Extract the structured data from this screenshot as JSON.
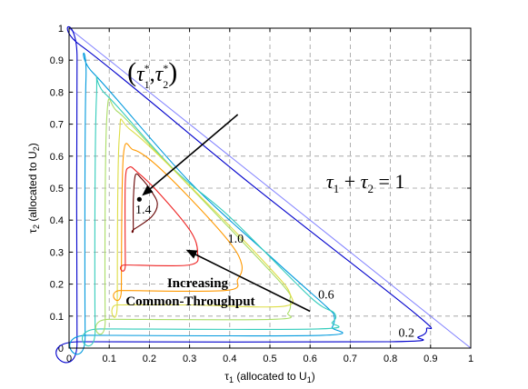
{
  "chart_data": {
    "type": "line",
    "title": "",
    "xlabel": {
      "main": "τ",
      "sub": "1",
      "rest": " (allocated to U",
      "rest_sub": "1",
      "end": ")"
    },
    "ylabel": {
      "main": "τ",
      "sub": "2",
      "rest": " (allocated to U",
      "rest_sub": "2",
      "end": ")"
    },
    "xlim": [
      0,
      1
    ],
    "ylim": [
      0,
      1
    ],
    "xticks": [
      "0",
      "0.1",
      "0.2",
      "0.3",
      "0.4",
      "0.5",
      "0.6",
      "0.7",
      "0.8",
      "0.9",
      "1"
    ],
    "yticks": [
      "0",
      "0.1",
      "0.2",
      "0.3",
      "0.4",
      "0.5",
      "0.6",
      "0.7",
      "0.8",
      "0.9",
      "1"
    ],
    "grid": true,
    "constraint_line": {
      "from": [
        0,
        1
      ],
      "to": [
        1,
        0
      ],
      "color": "#8080ff"
    },
    "contours": [
      {
        "color": "#0000cc",
        "points": [
          [
            0.027,
            0.02
          ],
          [
            0.8,
            0.02
          ],
          [
            0.87,
            0.035
          ],
          [
            0.89,
            0.06
          ],
          [
            0.86,
            0.11
          ],
          [
            0.45,
            0.515
          ],
          [
            0.03,
            0.945
          ],
          [
            0.02,
            0.9
          ],
          [
            0.02,
            0.02
          ]
        ]
      },
      {
        "color": "#0099dd",
        "points": [
          [
            0.047,
            0.04
          ],
          [
            0.63,
            0.04
          ],
          [
            0.655,
            0.065
          ],
          [
            0.66,
            0.1
          ],
          [
            0.64,
            0.13
          ],
          [
            0.52,
            0.265
          ],
          [
            0.3,
            0.52
          ],
          [
            0.06,
            0.86
          ],
          [
            0.042,
            0.84
          ],
          [
            0.04,
            0.04
          ]
        ]
      },
      {
        "color": "#33ccbb",
        "points": [
          [
            0.077,
            0.06
          ],
          [
            0.62,
            0.06
          ],
          [
            0.655,
            0.08
          ],
          [
            0.66,
            0.11
          ],
          [
            0.6,
            0.16
          ],
          [
            0.4,
            0.41
          ],
          [
            0.26,
            0.56
          ],
          [
            0.09,
            0.795
          ],
          [
            0.068,
            0.78
          ],
          [
            0.065,
            0.06
          ]
        ]
      },
      {
        "color": "#aadd66",
        "points": [
          [
            0.1,
            0.09
          ],
          [
            0.51,
            0.09
          ],
          [
            0.545,
            0.11
          ],
          [
            0.55,
            0.15
          ],
          [
            0.53,
            0.2
          ],
          [
            0.35,
            0.44
          ],
          [
            0.22,
            0.61
          ],
          [
            0.12,
            0.74
          ],
          [
            0.094,
            0.72
          ],
          [
            0.09,
            0.09
          ]
        ]
      },
      {
        "color": "#dddd44",
        "points": [
          [
            0.12,
            0.135
          ],
          [
            0.3,
            0.135
          ],
          [
            0.53,
            0.13
          ],
          [
            0.55,
            0.17
          ],
          [
            0.5,
            0.25
          ],
          [
            0.33,
            0.47
          ],
          [
            0.155,
            0.68
          ],
          [
            0.125,
            0.66
          ],
          [
            0.12,
            0.135
          ]
        ]
      },
      {
        "color": "#ff9900",
        "points": [
          [
            0.13,
            0.18
          ],
          [
            0.39,
            0.18
          ],
          [
            0.42,
            0.215
          ],
          [
            0.43,
            0.26
          ],
          [
            0.4,
            0.33
          ],
          [
            0.3,
            0.47
          ],
          [
            0.21,
            0.58
          ],
          [
            0.16,
            0.62
          ],
          [
            0.135,
            0.6
          ],
          [
            0.13,
            0.18
          ]
        ]
      },
      {
        "color": "#ee2222",
        "points": [
          [
            0.14,
            0.26
          ],
          [
            0.3,
            0.26
          ],
          [
            0.32,
            0.3
          ],
          [
            0.3,
            0.37
          ],
          [
            0.22,
            0.49
          ],
          [
            0.17,
            0.55
          ],
          [
            0.15,
            0.565
          ],
          [
            0.14,
            0.52
          ],
          [
            0.14,
            0.26
          ]
        ]
      },
      {
        "color": "#660000",
        "points": [
          [
            0.16,
            0.37
          ],
          [
            0.205,
            0.41
          ],
          [
            0.22,
            0.45
          ],
          [
            0.205,
            0.49
          ],
          [
            0.18,
            0.53
          ],
          [
            0.165,
            0.54
          ],
          [
            0.16,
            0.46
          ],
          [
            0.16,
            0.37
          ]
        ]
      }
    ],
    "optimum_point": [
      0.175,
      0.465
    ],
    "contour_labels": [
      {
        "text": "1.4",
        "x": 0.185,
        "y": 0.42
      },
      {
        "text": "1.0",
        "x": 0.415,
        "y": 0.33
      },
      {
        "text": "0.6",
        "x": 0.64,
        "y": 0.155
      },
      {
        "text": "0.2",
        "x": 0.84,
        "y": 0.035
      }
    ],
    "annotations": {
      "point_label": {
        "open": "(",
        "tau": "τ",
        "sub1": "1",
        "star": "*",
        "comma": ",",
        "sub2": "2",
        "close": ")",
        "x": 0.145,
        "y": 0.835
      },
      "constraint_label": {
        "tau1": "τ",
        "sub1": "1",
        "plus": " + ",
        "tau2": "τ",
        "sub2": "2",
        "eq": " = 1",
        "x": 0.64,
        "y": 0.5
      },
      "increasing_line1": "Increasing",
      "increasing_line2": "Common-Throughput",
      "increasing_pos": [
        0.32,
        0.19
      ]
    },
    "arrows": [
      {
        "from": [
          0.42,
          0.73
        ],
        "to": [
          0.185,
          0.48
        ]
      },
      {
        "from": [
          0.6,
          0.115
        ],
        "to": [
          0.295,
          0.305
        ]
      }
    ]
  }
}
